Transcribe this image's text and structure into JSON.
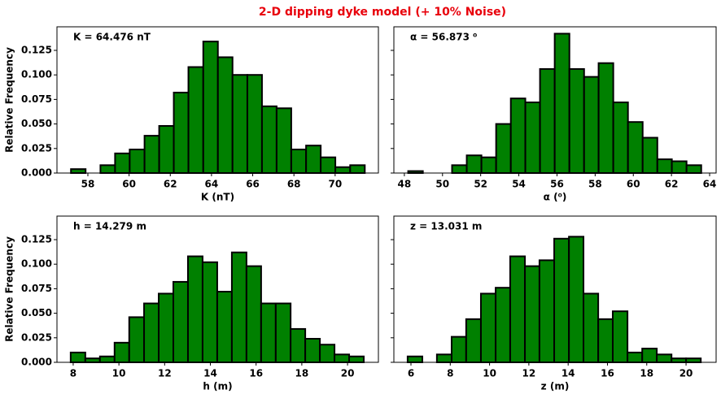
{
  "title": "2-D dipping dyke model (+ 10% Noise)",
  "chart_data": [
    {
      "type": "histogram",
      "annotation": "K = 64.476 nT",
      "xlabel": "K (nT)",
      "ylabel": "Relative Frequency",
      "color": "#008000",
      "edgecolor": "#000000",
      "bins": [
        57.18,
        57.89,
        58.61,
        59.32,
        60.03,
        60.75,
        61.46,
        62.17,
        62.88,
        63.6,
        64.31,
        65.02,
        65.74,
        66.45,
        67.16,
        67.87,
        68.59,
        69.3,
        70.01,
        70.73,
        71.44
      ],
      "values": [
        0.004,
        0,
        0.008,
        0.02,
        0.024,
        0.038,
        0.048,
        0.082,
        0.108,
        0.134,
        0.118,
        0.1,
        0.1,
        0.068,
        0.066,
        0.024,
        0.028,
        0.016,
        0.006,
        0.008
      ],
      "xlim": [
        56.5,
        72.1
      ],
      "ylim": [
        0,
        0.149
      ],
      "xticks": [
        58,
        60,
        62,
        64,
        66,
        68,
        70
      ],
      "yticks": [
        {
          "value": 0,
          "label": "0.000"
        },
        0.025,
        {
          "value": 0.05,
          "label": "0.050"
        },
        0.075,
        {
          "value": 0.1,
          "label": "0.100"
        },
        0.125
      ]
    },
    {
      "type": "histogram",
      "annotation": "α = 56.873 ⁰",
      "xlabel": "α (⁰)",
      "color": "#008000",
      "edgecolor": "#000000",
      "bins": [
        48.2,
        48.97,
        49.74,
        50.5,
        51.27,
        52.04,
        52.81,
        53.58,
        54.34,
        55.11,
        55.88,
        56.65,
        57.42,
        58.18,
        58.95,
        59.72,
        60.49,
        61.26,
        62.02,
        62.79,
        63.56
      ],
      "values": [
        0.002,
        0,
        0,
        0.008,
        0.018,
        0.016,
        0.05,
        0.076,
        0.072,
        0.106,
        0.142,
        0.106,
        0.098,
        0.112,
        0.072,
        0.052,
        0.036,
        0.014,
        0.012,
        0.008
      ],
      "xlim": [
        47.45,
        64.34
      ],
      "ylim": [
        0,
        0.149
      ],
      "xticks": [
        48,
        50,
        52,
        54,
        56,
        58,
        60,
        62,
        64
      ],
      "yticks": [
        0,
        0.025,
        0.05,
        0.075,
        0.1,
        0.125
      ]
    },
    {
      "type": "histogram",
      "annotation": "h = 14.279 m",
      "xlabel": "h (m)",
      "ylabel": "Relative Frequency",
      "color": "#008000",
      "edgecolor": "#000000",
      "bins": [
        7.89,
        8.53,
        9.17,
        9.81,
        10.45,
        11.1,
        11.74,
        12.38,
        13.02,
        13.66,
        14.3,
        14.94,
        15.58,
        16.22,
        16.86,
        17.51,
        18.15,
        18.79,
        19.43,
        20.07,
        20.71
      ],
      "values": [
        0.01,
        0.004,
        0.006,
        0.02,
        0.046,
        0.06,
        0.07,
        0.082,
        0.108,
        0.102,
        0.072,
        0.112,
        0.098,
        0.06,
        0.06,
        0.034,
        0.024,
        0.018,
        0.008,
        0.006
      ],
      "xlim": [
        7.29,
        21.35
      ],
      "ylim": [
        0,
        0.149
      ],
      "xticks": [
        8,
        10,
        12,
        14,
        16,
        18,
        20
      ],
      "yticks": [
        {
          "value": 0,
          "label": "0.000"
        },
        0.025,
        {
          "value": 0.05,
          "label": "0.050"
        },
        0.075,
        {
          "value": 0.1,
          "label": "0.100"
        },
        0.125
      ]
    },
    {
      "type": "histogram",
      "annotation": "z = 13.031 m",
      "xlabel": "z (m)",
      "color": "#008000",
      "edgecolor": "#000000",
      "bins": [
        5.83,
        6.58,
        7.32,
        8.07,
        8.81,
        9.56,
        10.31,
        11.05,
        11.8,
        12.54,
        13.29,
        14.04,
        14.78,
        15.53,
        16.27,
        17.02,
        17.77,
        18.51,
        19.26,
        20.0,
        20.75
      ],
      "values": [
        0.006,
        0,
        0.008,
        0.026,
        0.044,
        0.07,
        0.076,
        0.108,
        0.098,
        0.104,
        0.126,
        0.128,
        0.07,
        0.044,
        0.052,
        0.01,
        0.014,
        0.008,
        0.004,
        0.004
      ],
      "xlim": [
        5.13,
        21.53
      ],
      "ylim": [
        0,
        0.149
      ],
      "xticks": [
        6,
        8,
        10,
        12,
        14,
        16,
        18,
        20
      ],
      "yticks": [
        0,
        0.025,
        0.05,
        0.075,
        0.1,
        0.125
      ]
    }
  ]
}
